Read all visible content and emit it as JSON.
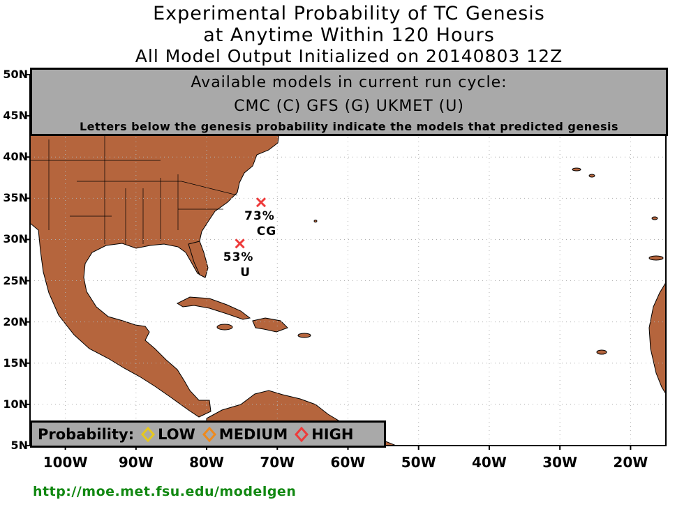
{
  "title": {
    "line1": "Experimental Probability of TC Genesis",
    "line2": "at Anytime Within 120 Hours",
    "line3": "All Model Output Initialized on 20140803 12Z"
  },
  "info_box": {
    "heading": "Available models in current run cycle:",
    "models": "CMC (C) GFS (G)  UKMET (U)",
    "note": "Letters below the genesis probability indicate the models that predicted genesis"
  },
  "axes": {
    "lat_labels": [
      "50N",
      "45N",
      "40N",
      "35N",
      "30N",
      "25N",
      "20N",
      "15N",
      "10N",
      "5N"
    ],
    "lon_labels": [
      "100W",
      "90W",
      "80W",
      "70W",
      "60W",
      "50W",
      "40W",
      "30W",
      "20W"
    ],
    "lat_range": [
      5,
      50
    ],
    "lon_range": [
      -105,
      -15
    ]
  },
  "genesis_points": [
    {
      "lat": 34.5,
      "lon": -72.3,
      "probability": "73%",
      "models": "CG",
      "category": "HIGH"
    },
    {
      "lat": 29.5,
      "lon": -75.3,
      "probability": "53%",
      "models": "U",
      "category": "HIGH"
    }
  ],
  "legend": {
    "label": "Probability:",
    "items": [
      {
        "name": "LOW",
        "color": "#e6c81e"
      },
      {
        "name": "MEDIUM",
        "color": "#ee8a1e"
      },
      {
        "name": "HIGH",
        "color": "#ee3b3b"
      }
    ]
  },
  "colors": {
    "land": "#b5653d",
    "ocean": "#ffffff",
    "marker": "#ee3b3b",
    "url": "#118811"
  },
  "footer_url": "http://moe.met.fsu.edu/modelgen"
}
